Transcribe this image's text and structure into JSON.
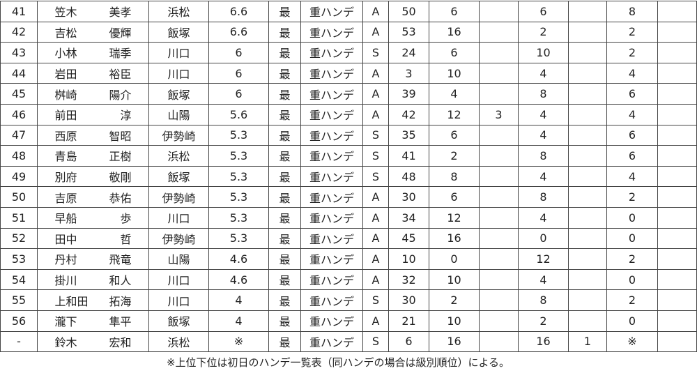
{
  "rows": [
    {
      "rank": "41",
      "last": "笠木",
      "first": "美孝",
      "place": "浜松",
      "hande": "6.6",
      "c1": "最",
      "c2": "重ハンデ",
      "cls": "A",
      "n1": "50",
      "n2": "6",
      "n3": "",
      "n4": "6",
      "n5": "",
      "n6": "8",
      "n7": ""
    },
    {
      "rank": "42",
      "last": "吉松",
      "first": "優輝",
      "place": "飯塚",
      "hande": "6.6",
      "c1": "最",
      "c2": "重ハンデ",
      "cls": "A",
      "n1": "53",
      "n2": "16",
      "n3": "",
      "n4": "2",
      "n5": "",
      "n6": "2",
      "n7": ""
    },
    {
      "rank": "43",
      "last": "小林",
      "first": "瑞季",
      "place": "川口",
      "hande": "6",
      "c1": "最",
      "c2": "重ハンデ",
      "cls": "S",
      "n1": "24",
      "n2": "6",
      "n3": "",
      "n4": "10",
      "n5": "",
      "n6": "2",
      "n7": ""
    },
    {
      "rank": "44",
      "last": "岩田",
      "first": "裕臣",
      "place": "川口",
      "hande": "6",
      "c1": "最",
      "c2": "重ハンデ",
      "cls": "A",
      "n1": "3",
      "n2": "10",
      "n3": "",
      "n4": "4",
      "n5": "",
      "n6": "4",
      "n7": ""
    },
    {
      "rank": "45",
      "last": "桝崎",
      "first": "陽介",
      "place": "飯塚",
      "hande": "6",
      "c1": "最",
      "c2": "重ハンデ",
      "cls": "A",
      "n1": "39",
      "n2": "4",
      "n3": "",
      "n4": "8",
      "n5": "",
      "n6": "6",
      "n7": ""
    },
    {
      "rank": "46",
      "last": "前田",
      "first": "淳",
      "place": "山陽",
      "hande": "5.6",
      "c1": "最",
      "c2": "重ハンデ",
      "cls": "A",
      "n1": "42",
      "n2": "12",
      "n3": "3",
      "n4": "4",
      "n5": "",
      "n6": "4",
      "n7": ""
    },
    {
      "rank": "47",
      "last": "西原",
      "first": "智昭",
      "place": "伊勢崎",
      "hande": "5.3",
      "c1": "最",
      "c2": "重ハンデ",
      "cls": "S",
      "n1": "35",
      "n2": "6",
      "n3": "",
      "n4": "4",
      "n5": "",
      "n6": "6",
      "n7": ""
    },
    {
      "rank": "48",
      "last": "青島",
      "first": "正樹",
      "place": "浜松",
      "hande": "5.3",
      "c1": "最",
      "c2": "重ハンデ",
      "cls": "S",
      "n1": "41",
      "n2": "2",
      "n3": "",
      "n4": "8",
      "n5": "",
      "n6": "6",
      "n7": ""
    },
    {
      "rank": "49",
      "last": "別府",
      "first": "敬剛",
      "place": "飯塚",
      "hande": "5.3",
      "c1": "最",
      "c2": "重ハンデ",
      "cls": "S",
      "n1": "48",
      "n2": "8",
      "n3": "",
      "n4": "4",
      "n5": "",
      "n6": "4",
      "n7": ""
    },
    {
      "rank": "50",
      "last": "吉原",
      "first": "恭佑",
      "place": "伊勢崎",
      "hande": "5.3",
      "c1": "最",
      "c2": "重ハンデ",
      "cls": "A",
      "n1": "30",
      "n2": "6",
      "n3": "",
      "n4": "8",
      "n5": "",
      "n6": "2",
      "n7": ""
    },
    {
      "rank": "51",
      "last": "早船",
      "first": "歩",
      "place": "川口",
      "hande": "5.3",
      "c1": "最",
      "c2": "重ハンデ",
      "cls": "A",
      "n1": "34",
      "n2": "12",
      "n3": "",
      "n4": "4",
      "n5": "",
      "n6": "0",
      "n7": ""
    },
    {
      "rank": "52",
      "last": "田中",
      "first": "哲",
      "place": "伊勢崎",
      "hande": "5.3",
      "c1": "最",
      "c2": "重ハンデ",
      "cls": "A",
      "n1": "45",
      "n2": "16",
      "n3": "",
      "n4": "0",
      "n5": "",
      "n6": "0",
      "n7": ""
    },
    {
      "rank": "53",
      "last": "丹村",
      "first": "飛竜",
      "place": "山陽",
      "hande": "4.6",
      "c1": "最",
      "c2": "重ハンデ",
      "cls": "A",
      "n1": "10",
      "n2": "0",
      "n3": "",
      "n4": "12",
      "n5": "",
      "n6": "2",
      "n7": ""
    },
    {
      "rank": "54",
      "last": "掛川",
      "first": "和人",
      "place": "川口",
      "hande": "4.6",
      "c1": "最",
      "c2": "重ハンデ",
      "cls": "A",
      "n1": "32",
      "n2": "10",
      "n3": "",
      "n4": "4",
      "n5": "",
      "n6": "0",
      "n7": ""
    },
    {
      "rank": "55",
      "last": "上和田",
      "first": "拓海",
      "place": "川口",
      "hande": "4",
      "c1": "最",
      "c2": "重ハンデ",
      "cls": "S",
      "n1": "30",
      "n2": "2",
      "n3": "",
      "n4": "8",
      "n5": "",
      "n6": "2",
      "n7": ""
    },
    {
      "rank": "56",
      "last": "瀧下",
      "first": "隼平",
      "place": "飯塚",
      "hande": "4",
      "c1": "最",
      "c2": "重ハンデ",
      "cls": "A",
      "n1": "21",
      "n2": "10",
      "n3": "",
      "n4": "2",
      "n5": "",
      "n6": "0",
      "n7": ""
    },
    {
      "rank": "-",
      "last": "鈴木",
      "first": "宏和",
      "place": "浜松",
      "hande": "※",
      "c1": "最",
      "c2": "重ハンデ",
      "cls": "S",
      "n1": "6",
      "n2": "16",
      "n3": "",
      "n4": "16",
      "n5": "1",
      "n6": "※",
      "n7": ""
    }
  ],
  "note": "※上位下位は初日のハンデ一覧表（同ハンデの場合は級別順位）による。"
}
